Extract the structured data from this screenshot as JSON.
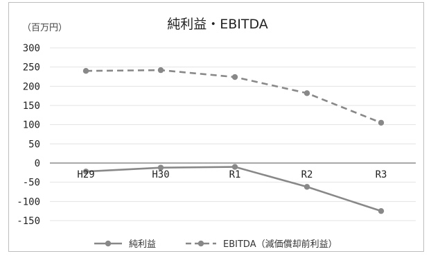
{
  "chart_data": {
    "type": "line",
    "title": "純利益・EBITDA",
    "unit_label": "（百万円）",
    "categories": [
      "H29",
      "H30",
      "R1",
      "R2",
      "R3"
    ],
    "yticks": [
      300,
      250,
      200,
      150,
      100,
      50,
      0,
      -50,
      -100,
      -150
    ],
    "ylim": [
      -150,
      300
    ],
    "grid": true,
    "legend_position": "bottom",
    "series": [
      {
        "name": "純利益",
        "values": [
          -22,
          -12,
          -10,
          -62,
          -125
        ],
        "style": "solid",
        "color": "#888888"
      },
      {
        "name": "EBITDA（減価償却前利益）",
        "values": [
          240,
          242,
          224,
          182,
          105
        ],
        "style": "dashed",
        "color": "#888888"
      }
    ]
  }
}
